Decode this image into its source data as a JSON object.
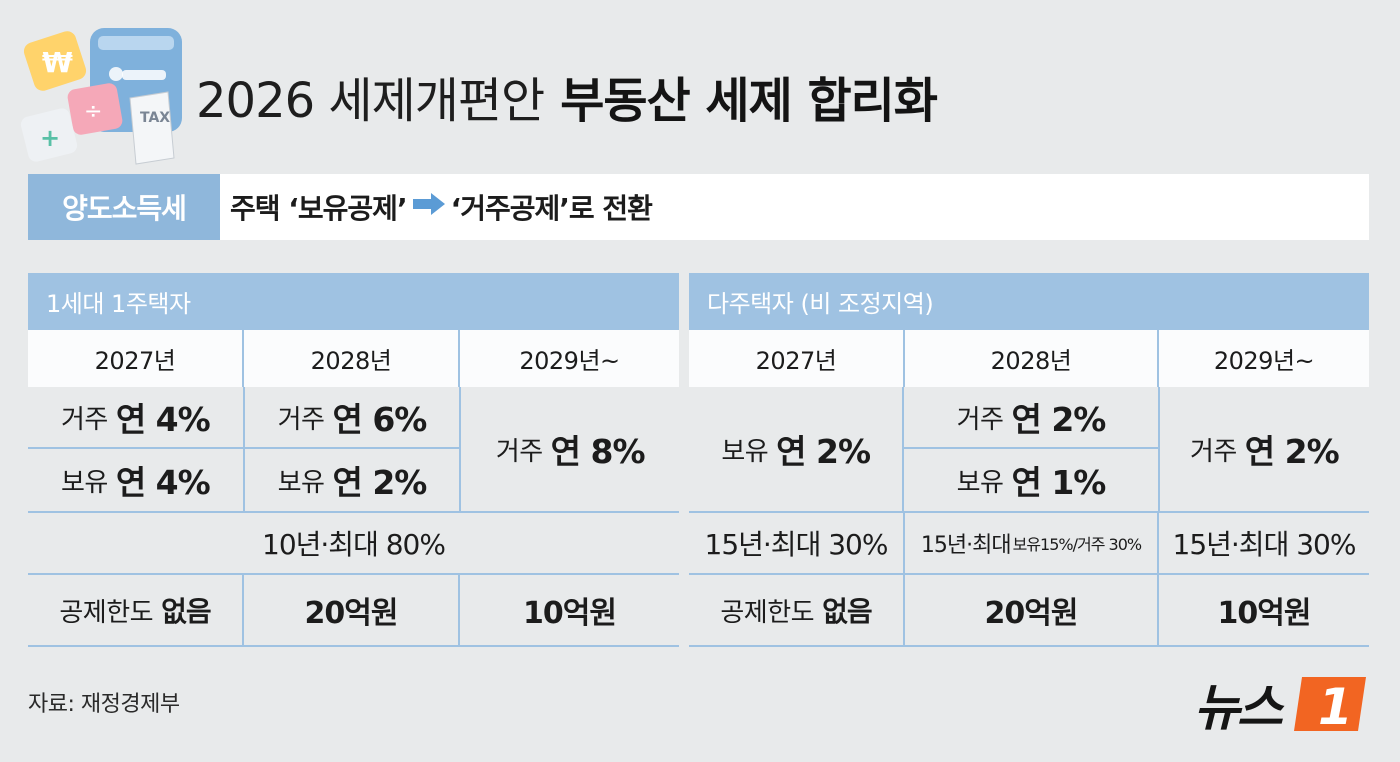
{
  "title": {
    "light": "2026 세제개편안",
    "bold": "부동산 세제 합리화"
  },
  "subheader": {
    "label": "양도소득세",
    "left": "주택 ‘보유공제’",
    "right": "‘거주공제’로 전환"
  },
  "left_panel": {
    "title": "1세대 1주택자",
    "years": [
      "2027년",
      "2028년",
      "2029년~"
    ],
    "y2027": {
      "top_pre": "거주",
      "top_val": "연 4%",
      "bot_pre": "보유",
      "bot_val": "연 4%"
    },
    "y2028": {
      "top_pre": "거주",
      "top_val": "연 6%",
      "bot_pre": "보유",
      "bot_val": "연 2%"
    },
    "y2029": {
      "pre": "거주",
      "val": "연 8%"
    },
    "span_row": "10년·최대 80%",
    "limit": {
      "pre": "공제한도",
      "val": "없음",
      "c2": "20억원",
      "c3": "10억원"
    }
  },
  "right_panel": {
    "title": "다주택자 (비 조정지역)",
    "years": [
      "2027년",
      "2028년",
      "2029년~"
    ],
    "y2027": {
      "pre": "보유",
      "val": "연 2%"
    },
    "y2028": {
      "top_pre": "거주",
      "top_val": "연 2%",
      "bot_pre": "보유",
      "bot_val": "연 1%"
    },
    "y2029": {
      "pre": "거주",
      "val": "연 2%"
    },
    "period": {
      "c1": "15년·최대 30%",
      "c2_main": "15년·최대",
      "c2_small": "보유15%/거주 30%",
      "c3": "15년·최대 30%"
    },
    "limit": {
      "pre": "공제한도",
      "val": "없음",
      "c2": "20억원",
      "c3": "10억원"
    }
  },
  "source": "자료: 재정경제부",
  "logo": {
    "text": "뉴스",
    "mark": "1"
  },
  "colors": {
    "accent": "#8fb7db",
    "header": "#9fc2e2",
    "background": "#e8eaeb",
    "logo_orange": "#f26522"
  },
  "icons": [
    "tax-calculator-illustration",
    "arrow-right-icon",
    "news1-logo"
  ]
}
